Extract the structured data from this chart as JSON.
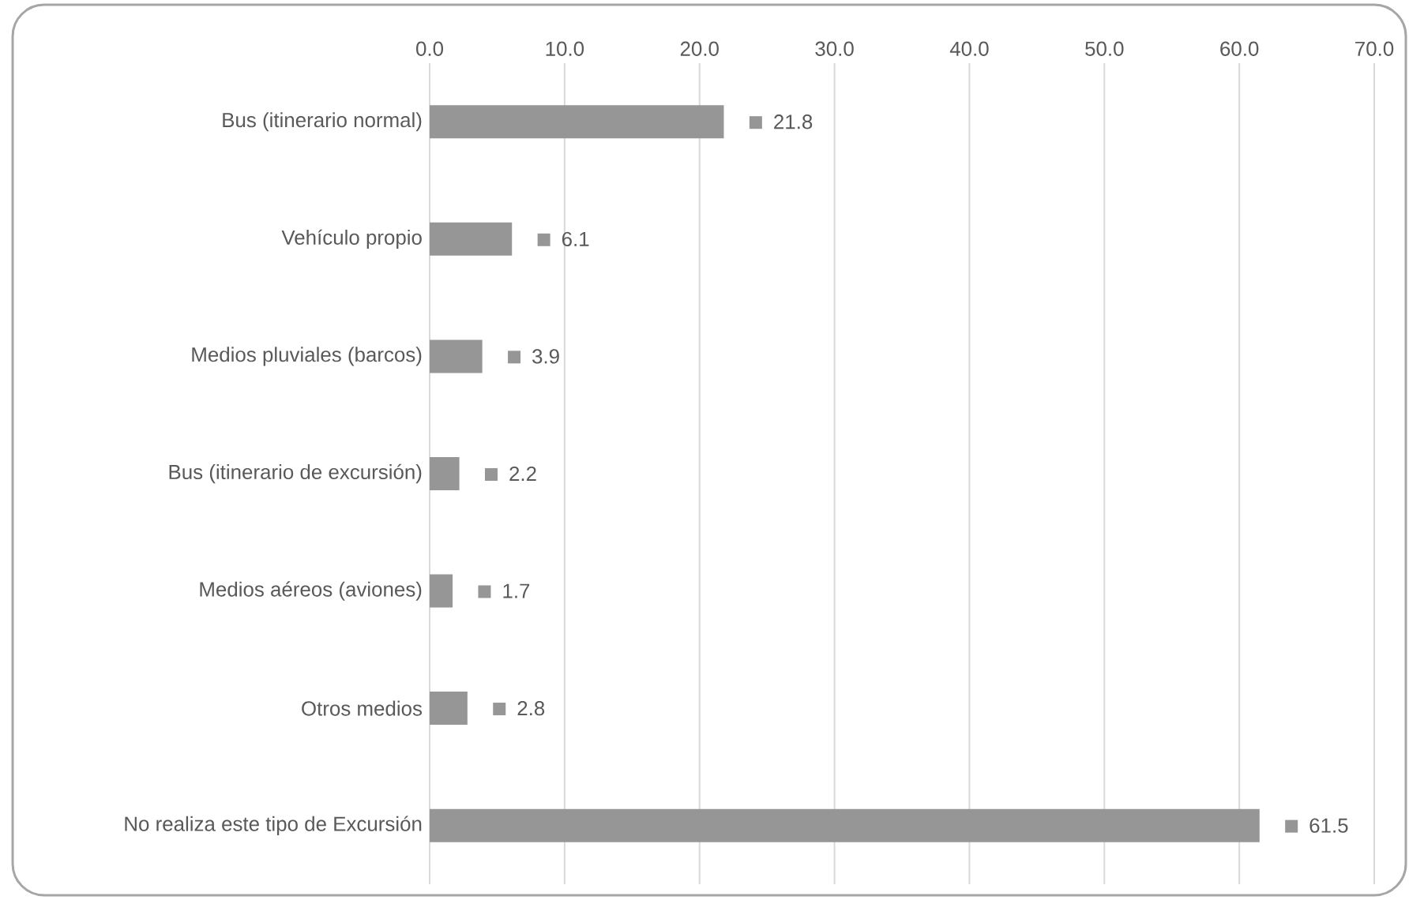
{
  "chart_data": {
    "type": "bar",
    "orientation": "horizontal",
    "categories": [
      "Bus (itinerario normal)",
      "Vehículo propio",
      "Medios pluviales (barcos)",
      "Bus (itinerario de excursión)",
      "Medios aéreos (aviones)",
      "Otros medios",
      "No realiza este tipo de Excursión"
    ],
    "values": [
      21.8,
      6.1,
      3.9,
      2.2,
      1.7,
      2.8,
      61.5
    ],
    "color": "#969696",
    "xlim": [
      0,
      70
    ],
    "xticks": [
      {
        "value": 0,
        "label": "0.0"
      },
      {
        "value": 10,
        "label": "10.0"
      },
      {
        "value": 20,
        "label": "20.0"
      },
      {
        "value": 30,
        "label": "30.0"
      },
      {
        "value": 40,
        "label": "40.0"
      },
      {
        "value": 50,
        "label": "50.0"
      },
      {
        "value": 60,
        "label": "60.0"
      },
      {
        "value": 70,
        "label": "70.0"
      }
    ],
    "grid": true,
    "data_labels": true
  }
}
